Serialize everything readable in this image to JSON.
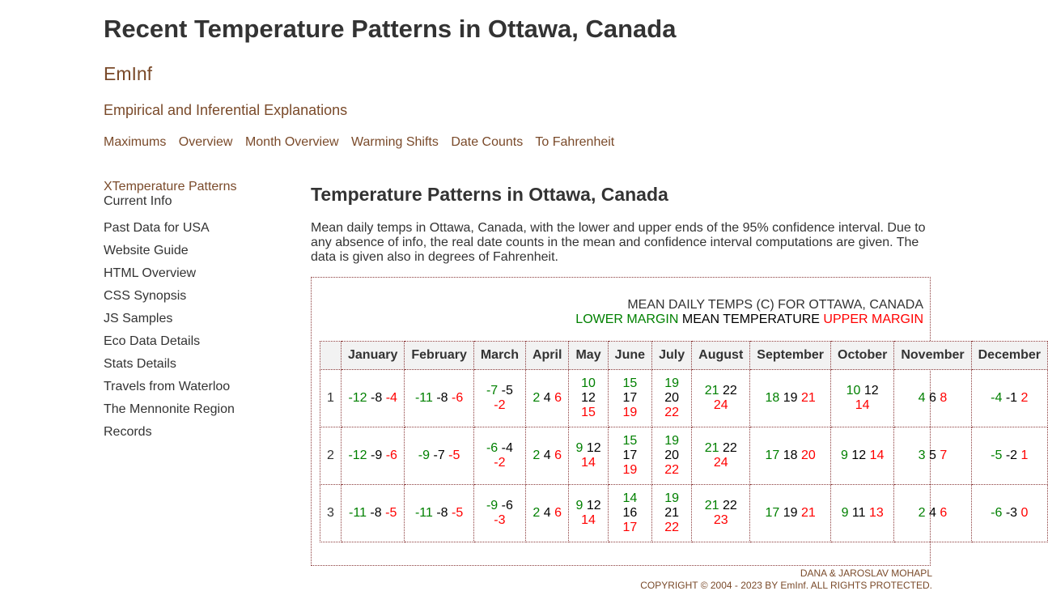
{
  "header": {
    "title": "Recent Temperature Patterns in Ottawa, Canada",
    "brand": "EmInf",
    "tagline": "Empirical and Inferential Explanations"
  },
  "topnav": [
    "Maximums",
    "Overview",
    "Month Overview",
    "Warming Shifts",
    "Date Counts",
    "To Fahrenheit"
  ],
  "sidebar": {
    "current": "XTemperature Patterns",
    "items": [
      "Current Info",
      "Past Data for USA",
      "Website Guide",
      "HTML Overview",
      "CSS Synopsis",
      "JS Samples",
      "Eco Data Details",
      "Stats Details",
      "Travels from Waterloo",
      "The Mennonite Region",
      "Records"
    ]
  },
  "main": {
    "title": "Temperature Patterns in Ottawa, Canada",
    "intro": "Mean daily temps in Ottawa, Canada, with the lower and upper ends of the 95% confidence interval. Due to any absence of info, the real date counts in the mean and confidence interval computations are given. The data is given also in degrees of Fahrenheit."
  },
  "caption": {
    "line1": "MEAN DAILY TEMPS (C) FOR OTTAWA, CANADA",
    "lower": "LOWER MARGIN",
    "mean": "MEAN TEMPERATURE",
    "upper": "UPPER MARGIN"
  },
  "colors": {
    "lower": "#008000",
    "mean": "#000000",
    "upper": "#ff0000",
    "accent": "#7a4a2a"
  },
  "table": {
    "months": [
      "January",
      "February",
      "March",
      "April",
      "May",
      "June",
      "July",
      "August",
      "September",
      "October",
      "November",
      "December"
    ],
    "rows": [
      {
        "day": "1",
        "cells": [
          [
            "-12",
            "-8",
            "-4"
          ],
          [
            "-11",
            "-8",
            "-6"
          ],
          [
            "-7",
            "-5",
            "-2"
          ],
          [
            "2",
            "4",
            "6"
          ],
          [
            "10",
            "12",
            "15"
          ],
          [
            "15",
            "17",
            "19"
          ],
          [
            "19",
            "20",
            "22"
          ],
          [
            "21",
            "22",
            "24"
          ],
          [
            "18",
            "19",
            "21"
          ],
          [
            "10",
            "12",
            "14"
          ],
          [
            "4",
            "6",
            "8"
          ],
          [
            "-4",
            "-1",
            "2"
          ]
        ]
      },
      {
        "day": "2",
        "cells": [
          [
            "-12",
            "-9",
            "-6"
          ],
          [
            "-9",
            "-7",
            "-5"
          ],
          [
            "-6",
            "-4",
            "-2"
          ],
          [
            "2",
            "4",
            "6"
          ],
          [
            "9",
            "12",
            "14"
          ],
          [
            "15",
            "17",
            "19"
          ],
          [
            "19",
            "20",
            "22"
          ],
          [
            "21",
            "22",
            "24"
          ],
          [
            "17",
            "18",
            "20"
          ],
          [
            "9",
            "12",
            "14"
          ],
          [
            "3",
            "5",
            "7"
          ],
          [
            "-5",
            "-2",
            "1"
          ]
        ]
      },
      {
        "day": "3",
        "cells": [
          [
            "-11",
            "-8",
            "-5"
          ],
          [
            "-11",
            "-8",
            "-5"
          ],
          [
            "-9",
            "-6",
            "-3"
          ],
          [
            "2",
            "4",
            "6"
          ],
          [
            "9",
            "12",
            "14"
          ],
          [
            "14",
            "16",
            "17"
          ],
          [
            "19",
            "21",
            "22"
          ],
          [
            "21",
            "22",
            "23"
          ],
          [
            "17",
            "19",
            "21"
          ],
          [
            "9",
            "11",
            "13"
          ],
          [
            "2",
            "4",
            "6"
          ],
          [
            "-6",
            "-3",
            "0"
          ]
        ]
      }
    ]
  },
  "footer": {
    "authors": "DANA & JAROSLAV MOHAPL",
    "copyright": "COPYRIGHT © 2004 - 2023 BY EmInf. ALL RIGHTS PROTECTED."
  }
}
